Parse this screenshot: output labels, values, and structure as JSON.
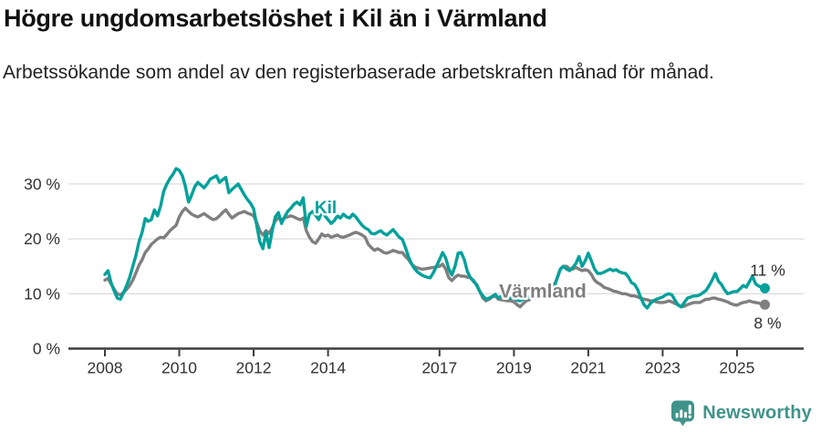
{
  "header": {
    "title": "Högre ungdomsarbetslöshet i Kil än i Värmland",
    "subtitle": "Arbetssökande som andel av den registerbaserade arbetskraften månad för månad."
  },
  "chart_data": {
    "type": "line",
    "title": "Högre ungdomsarbetslöshet i Kil än i Värmland",
    "subtitle": "Arbetssökande som andel av den registerbaserade arbetskraften månad för månad.",
    "unit": "%",
    "frequency": "monthly",
    "x_start": "2008-01",
    "x_end": "2025-10",
    "ylim": [
      0,
      34
    ],
    "grid": "horizontal",
    "legend_position": "inline-labels",
    "colors": {
      "kil": "#00A19A",
      "varmland": "#7F7F7F",
      "axis": "#3D3D3D",
      "grid": "#DCDCDC",
      "brand": "#3F938B",
      "tick_text": "#333333",
      "value_text": "#2E2E2E"
    },
    "y_ticks": [
      {
        "value": 0,
        "label": "0 %"
      },
      {
        "value": 10,
        "label": "10 %"
      },
      {
        "value": 20,
        "label": "20 %"
      },
      {
        "value": 30,
        "label": "30 %"
      }
    ],
    "x_ticks": [
      {
        "value": 2008,
        "label": "2008"
      },
      {
        "value": 2010,
        "label": "2010"
      },
      {
        "value": 2012,
        "label": "2012"
      },
      {
        "value": 2014,
        "label": "2014"
      },
      {
        "value": 2017,
        "label": "2017"
      },
      {
        "value": 2019,
        "label": "2019"
      },
      {
        "value": 2021,
        "label": "2021"
      },
      {
        "value": 2023,
        "label": "2023"
      },
      {
        "value": 2025,
        "label": "2025"
      }
    ],
    "series": [
      {
        "id": "kil",
        "name": "Kil",
        "color": "#00A19A",
        "end_label": "11 %",
        "last_value": 11,
        "label_pos": {
          "year": 2013.64,
          "pct": 24.7
        },
        "values": [
          13.5,
          14.2,
          12.0,
          10.5,
          9.2,
          9.0,
          10.2,
          11.5,
          13.0,
          15.0,
          17.0,
          19.5,
          21.2,
          23.7,
          23.2,
          23.5,
          25.3,
          24.2,
          26.0,
          28.7,
          30.0,
          31.0,
          31.8,
          32.8,
          32.5,
          31.5,
          29.5,
          26.7,
          28.0,
          29.5,
          30.3,
          29.8,
          29.3,
          30.0,
          30.9,
          31.2,
          31.5,
          30.3,
          30.8,
          31.2,
          28.4,
          29.0,
          29.5,
          30.0,
          29.0,
          28.0,
          27.2,
          26.5,
          25.5,
          22.5,
          19.5,
          18.2,
          21.2,
          18.4,
          21.5,
          24.0,
          24.8,
          22.8,
          24.0,
          25.0,
          25.6,
          26.3,
          26.7,
          26.2,
          27.5,
          22.3,
          24.5,
          25.0,
          24.3,
          23.5,
          25.0,
          24.2,
          23.5,
          22.8,
          23.3,
          24.2,
          23.8,
          24.5,
          24.0,
          23.8,
          24.5,
          24.0,
          23.2,
          22.5,
          22.0,
          21.7,
          21.0,
          20.9,
          21.2,
          21.5,
          21.0,
          20.7,
          21.2,
          21.7,
          21.0,
          20.3,
          19.9,
          18.4,
          16.7,
          15.4,
          14.5,
          13.9,
          13.5,
          13.2,
          13.0,
          12.9,
          13.8,
          15.0,
          16.2,
          17.5,
          16.5,
          14.5,
          13.4,
          15.0,
          17.4,
          17.5,
          16.2,
          14.0,
          12.9,
          12.4,
          11.5,
          10.4,
          9.6,
          9.0,
          9.2,
          9.5,
          9.9,
          9.2,
          9.6,
          9.4,
          9.2,
          9.2,
          9.2,
          8.8,
          8.7,
          9.0,
          9.2,
          9.4,
          9.6,
          9.3,
          9.5,
          9.8,
          10.4,
          11.0,
          10.2,
          11.0,
          13.0,
          14.5,
          15.0,
          14.5,
          14.2,
          14.8,
          15.5,
          16.8,
          15.0,
          16.0,
          17.4,
          16.0,
          14.5,
          13.7,
          13.7,
          13.9,
          14.2,
          14.5,
          14.2,
          14.4,
          14.0,
          13.8,
          13.7,
          13.0,
          12.0,
          11.7,
          10.7,
          9.2,
          8.0,
          7.4,
          8.2,
          8.7,
          9.0,
          9.2,
          9.4,
          9.8,
          10.0,
          9.8,
          8.8,
          7.9,
          7.6,
          8.4,
          9.2,
          9.4,
          9.6,
          9.6,
          9.8,
          10.2,
          10.6,
          11.5,
          12.5,
          13.7,
          12.3,
          11.7,
          10.7,
          10.0,
          10.2,
          10.4,
          10.4,
          10.9,
          11.5,
          11.2,
          12.2,
          13.2,
          11.8,
          11.4,
          11.2,
          11.0
        ]
      },
      {
        "id": "varmland",
        "name": "Värmland",
        "color": "#7F7F7F",
        "end_label": "8 %",
        "last_value": 8,
        "label_pos": {
          "year": 2018.6,
          "pct": 9.3
        },
        "values": [
          12.5,
          12.8,
          11.8,
          10.8,
          10.0,
          9.8,
          10.2,
          10.8,
          11.5,
          12.5,
          13.8,
          15.2,
          16.2,
          17.5,
          18.2,
          19.0,
          19.5,
          20.0,
          20.3,
          20.2,
          20.8,
          21.5,
          22.0,
          22.5,
          24.0,
          25.0,
          25.6,
          25.0,
          24.5,
          24.2,
          24.0,
          24.3,
          24.6,
          24.2,
          23.8,
          23.5,
          23.7,
          24.2,
          24.8,
          25.3,
          24.5,
          23.8,
          24.2,
          24.6,
          24.8,
          25.0,
          24.7,
          24.5,
          24.2,
          23.0,
          21.5,
          20.7,
          21.5,
          21.0,
          22.0,
          23.3,
          23.8,
          23.5,
          23.8,
          24.0,
          24.2,
          24.0,
          23.7,
          23.5,
          23.8,
          21.5,
          20.3,
          19.5,
          19.2,
          20.0,
          20.9,
          20.5,
          20.7,
          20.3,
          20.5,
          20.7,
          20.4,
          20.3,
          20.5,
          20.7,
          21.0,
          21.2,
          21.0,
          20.7,
          20.3,
          19.0,
          18.4,
          17.9,
          18.2,
          17.9,
          17.5,
          17.4,
          17.6,
          17.9,
          17.7,
          17.5,
          17.5,
          16.8,
          16.2,
          15.4,
          14.9,
          14.7,
          14.5,
          14.5,
          14.6,
          14.7,
          14.8,
          14.9,
          15.0,
          15.4,
          14.5,
          12.9,
          12.4,
          13.0,
          13.4,
          13.2,
          13.2,
          13.0,
          12.9,
          12.2,
          11.7,
          10.4,
          9.2,
          8.7,
          9.0,
          9.4,
          9.6,
          9.0,
          8.9,
          8.8,
          8.7,
          8.7,
          8.5,
          8.0,
          7.6,
          8.2,
          8.7,
          8.9,
          9.4,
          9.2,
          9.4,
          9.7,
          10.2,
          10.8,
          11.0,
          11.6,
          12.8,
          14.5,
          15.0,
          15.0,
          14.5,
          14.5,
          14.8,
          14.5,
          14.2,
          14.4,
          14.2,
          13.5,
          12.5,
          12.0,
          11.7,
          11.2,
          11.0,
          10.8,
          10.5,
          10.4,
          10.2,
          10.0,
          10.0,
          9.8,
          9.6,
          9.6,
          9.4,
          9.2,
          9.0,
          8.9,
          8.7,
          8.7,
          8.5,
          8.4,
          8.4,
          8.5,
          8.7,
          8.5,
          8.2,
          8.0,
          7.6,
          7.7,
          8.0,
          8.2,
          8.4,
          8.4,
          8.4,
          8.7,
          9.0,
          9.0,
          9.2,
          9.2,
          9.0,
          8.9,
          8.7,
          8.5,
          8.2,
          8.0,
          7.9,
          8.2,
          8.4,
          8.5,
          8.7,
          8.5,
          8.4,
          8.3,
          8.1,
          8.0
        ]
      }
    ]
  },
  "footer": {
    "brand": "Newsworthy"
  }
}
